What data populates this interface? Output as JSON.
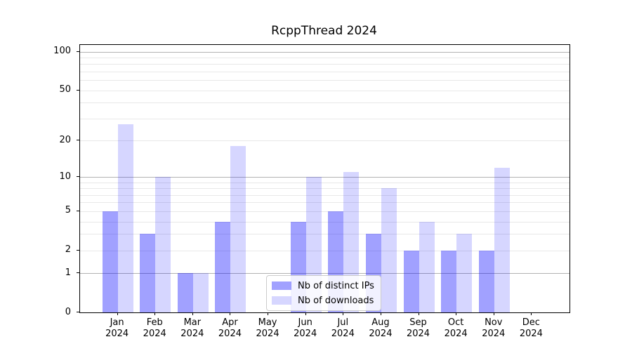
{
  "title": "RcppThread 2024",
  "legend": {
    "position": "lower center",
    "entries": [
      {
        "label": "Nb of distinct IPs",
        "color": "rgba(0,0,255,0.37)"
      },
      {
        "label": "Nb of downloads",
        "color": "rgba(0,0,255,0.16)"
      }
    ]
  },
  "chart_data": {
    "type": "bar",
    "title": "RcppThread 2024",
    "categories": [
      "Jan 2024",
      "Feb 2024",
      "Mar 2024",
      "Apr 2024",
      "May 2024",
      "Jun 2024",
      "Jul 2024",
      "Aug 2024",
      "Sep 2024",
      "Oct 2024",
      "Nov 2024",
      "Dec 2024"
    ],
    "month_labels": [
      "Jan",
      "Feb",
      "Mar",
      "Apr",
      "May",
      "Jun",
      "Jul",
      "Aug",
      "Sep",
      "Oct",
      "Nov",
      "Dec"
    ],
    "year_label": "2024",
    "series": [
      {
        "key": "ips",
        "name": "Nb of distinct IPs",
        "color": "rgba(0,0,255,0.37)",
        "values": [
          5,
          3,
          1,
          4,
          0,
          4,
          5,
          3,
          2,
          2,
          2,
          0
        ]
      },
      {
        "key": "downloads",
        "name": "Nb of downloads",
        "color": "rgba(0,0,255,0.16)",
        "values": [
          27,
          10,
          1,
          18,
          0,
          10,
          11,
          8,
          4,
          3,
          12,
          0
        ]
      }
    ],
    "xlabel": "",
    "ylabel": "",
    "y_axis": {
      "scale": "log1p",
      "ylim": [
        0,
        113
      ],
      "tick_values": [
        0,
        1,
        2,
        5,
        10,
        20,
        50,
        100
      ],
      "tick_labels": [
        "0",
        "1",
        "2",
        "5",
        "10",
        "20",
        "50",
        "100"
      ],
      "major_gridlines": [
        1,
        10,
        100
      ],
      "minor_gridlines": [
        2,
        3,
        4,
        5,
        6,
        7,
        8,
        9,
        20,
        30,
        40,
        50,
        60,
        70,
        80,
        90
      ]
    },
    "grid": "horizontal",
    "legend_position": "lower center",
    "colors": {
      "major_grid": "#b2b2b2",
      "minor_grid": "#e8e8e8",
      "spine": "#000000",
      "text": "#000000",
      "background": "#ffffff"
    }
  }
}
